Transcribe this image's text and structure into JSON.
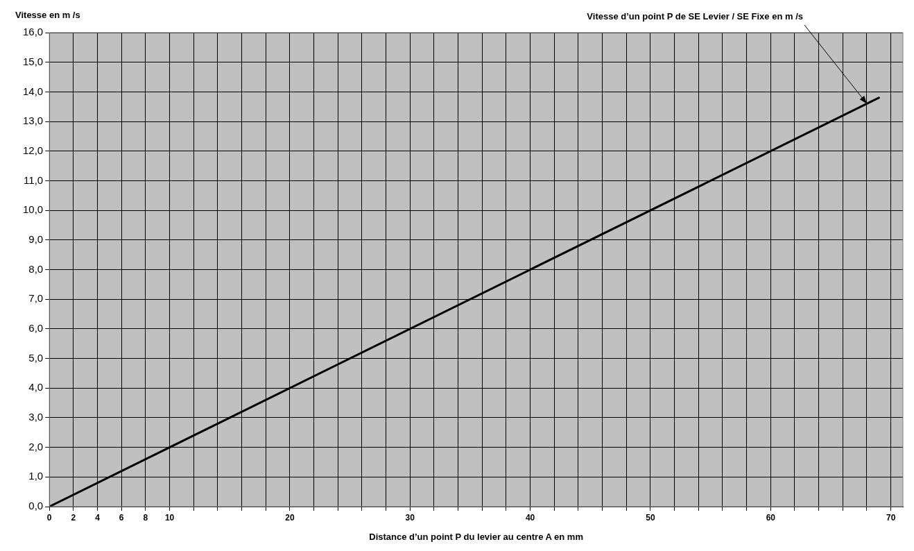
{
  "chart_data": {
    "type": "line",
    "ylabel": "Vitesse en m /s",
    "xlabel": "Distance d’un point P du levier au centre A en mm",
    "x": [
      0,
      69
    ],
    "series": [
      {
        "color": "#000000",
        "values": [
          0,
          13.8
        ]
      }
    ],
    "annotations": [
      {
        "text": "Vitesse d’un point P de SE Levier / SE Fixe en m /s",
        "x": 68,
        "y": 13.6
      }
    ],
    "xlim": [
      0,
      71
    ],
    "xticks": [
      0,
      2,
      4,
      6,
      8,
      10,
      {
        "value": 12,
        "label": null
      },
      {
        "value": 14,
        "label": null
      },
      {
        "value": 16,
        "label": null
      },
      {
        "value": 18,
        "label": null
      },
      20,
      {
        "value": 22,
        "label": null
      },
      {
        "value": 24,
        "label": null
      },
      {
        "value": 26,
        "label": null
      },
      {
        "value": 28,
        "label": null
      },
      30,
      {
        "value": 32,
        "label": null
      },
      {
        "value": 34,
        "label": null
      },
      {
        "value": 36,
        "label": null
      },
      {
        "value": 38,
        "label": null
      },
      40,
      {
        "value": 42,
        "label": null
      },
      {
        "value": 44,
        "label": null
      },
      {
        "value": 46,
        "label": null
      },
      {
        "value": 48,
        "label": null
      },
      50,
      {
        "value": 52,
        "label": null
      },
      {
        "value": 54,
        "label": null
      },
      {
        "value": 56,
        "label": null
      },
      {
        "value": 58,
        "label": null
      },
      60,
      {
        "value": 62,
        "label": null
      },
      {
        "value": 64,
        "label": null
      },
      {
        "value": 66,
        "label": null
      },
      {
        "value": 68,
        "label": null
      },
      70
    ],
    "ylim": [
      0,
      16
    ],
    "yticks": [
      {
        "value": 0,
        "label": "0,0"
      },
      {
        "value": 1,
        "label": "1,0"
      },
      {
        "value": 2,
        "label": "2,0"
      },
      {
        "value": 3,
        "label": "3,0"
      },
      {
        "value": 4,
        "label": "4,0"
      },
      {
        "value": 5,
        "label": "5,0"
      },
      {
        "value": 6,
        "label": "6,0"
      },
      {
        "value": 7,
        "label": "7,0"
      },
      {
        "value": 8,
        "label": "8,0"
      },
      {
        "value": 9,
        "label": "9,0"
      },
      {
        "value": 10,
        "label": "10,0"
      },
      {
        "value": 11,
        "label": "11,0"
      },
      {
        "value": 12,
        "label": "12,0"
      },
      {
        "value": 13,
        "label": "13,0"
      },
      {
        "value": 14,
        "label": "14,0"
      },
      {
        "value": 15,
        "label": "15,0"
      },
      {
        "value": 16,
        "label": "16,0"
      }
    ],
    "grid": true,
    "legend": false,
    "marker": "none",
    "line_style": "solid"
  }
}
